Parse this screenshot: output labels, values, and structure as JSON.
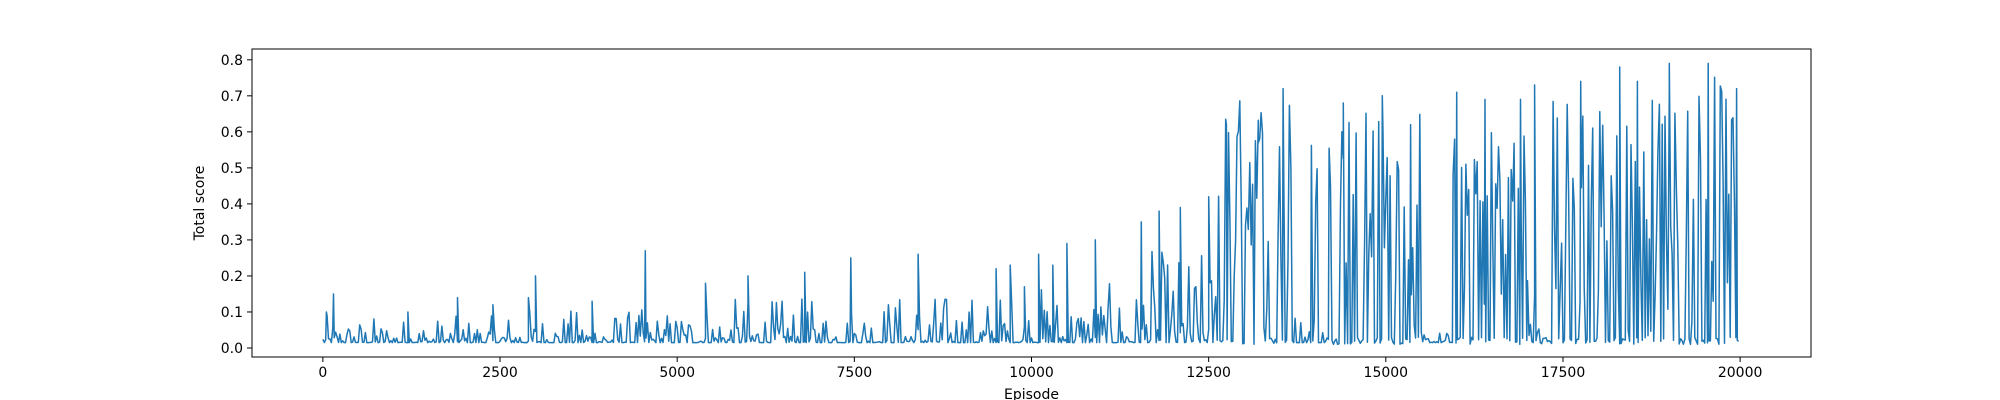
{
  "chart_data": {
    "type": "line",
    "title": "",
    "xlabel": "Episode",
    "ylabel": "Total score",
    "xlim": [
      -1000,
      21000
    ],
    "ylim": [
      -0.025,
      0.83
    ],
    "x_ticks": [
      0,
      2500,
      5000,
      7500,
      10000,
      12500,
      15000,
      17500,
      20000
    ],
    "x_tick_labels": [
      "0",
      "2500",
      "5000",
      "7500",
      "10000",
      "12500",
      "15000",
      "17500",
      "20000"
    ],
    "y_ticks": [
      0.0,
      0.1,
      0.2,
      0.3,
      0.4,
      0.5,
      0.6,
      0.7,
      0.8
    ],
    "y_tick_labels": [
      "0.0",
      "0.1",
      "0.2",
      "0.3",
      "0.4",
      "0.5",
      "0.6",
      "0.7",
      "0.8"
    ],
    "grid": false,
    "legend": "none",
    "color": "#1f77b4",
    "series": [
      {
        "episode_range": [
          0,
          20000
        ],
        "baseline_score": 0.02,
        "segments": [
          {
            "from": 0,
            "to": 2500,
            "low": 0.01,
            "high": 0.09,
            "peaks": [
              [
                50,
                0.1
              ],
              [
                150,
                0.15
              ],
              [
                1200,
                0.1
              ],
              [
                1900,
                0.14
              ],
              [
                2400,
                0.12
              ]
            ]
          },
          {
            "from": 2500,
            "to": 5000,
            "low": 0.01,
            "high": 0.11,
            "peaks": [
              [
                2900,
                0.14
              ],
              [
                3000,
                0.2
              ],
              [
                3800,
                0.13
              ],
              [
                4550,
                0.27
              ]
            ]
          },
          {
            "from": 5000,
            "to": 7500,
            "low": 0.01,
            "high": 0.14,
            "peaks": [
              [
                5400,
                0.18
              ],
              [
                6000,
                0.2
              ],
              [
                6800,
                0.21
              ],
              [
                7450,
                0.25
              ]
            ]
          },
          {
            "from": 7500,
            "to": 10000,
            "low": 0.01,
            "high": 0.16,
            "peaks": [
              [
                8400,
                0.26
              ],
              [
                9500,
                0.22
              ],
              [
                9700,
                0.23
              ],
              [
                9900,
                0.17
              ]
            ]
          },
          {
            "from": 10000,
            "to": 11500,
            "low": 0.01,
            "high": 0.18,
            "peaks": [
              [
                10100,
                0.26
              ],
              [
                10300,
                0.23
              ],
              [
                10500,
                0.29
              ],
              [
                10900,
                0.3
              ]
            ]
          },
          {
            "from": 11500,
            "to": 12600,
            "low": 0.01,
            "high": 0.28,
            "peaks": [
              [
                11550,
                0.35
              ],
              [
                11800,
                0.38
              ],
              [
                12100,
                0.39
              ],
              [
                12500,
                0.42
              ]
            ]
          },
          {
            "from": 12600,
            "to": 13700,
            "low": 0.01,
            "high": 0.7,
            "peaks": [
              [
                12750,
                0.62
              ],
              [
                13200,
                0.57
              ],
              [
                13550,
                0.72
              ]
            ]
          },
          {
            "from": 13700,
            "to": 13950,
            "low": 0.01,
            "high": 0.12,
            "peaks": []
          },
          {
            "from": 13950,
            "to": 14050,
            "low": 0.01,
            "high": 0.6,
            "peaks": []
          },
          {
            "from": 14050,
            "to": 14200,
            "low": 0.01,
            "high": 0.08,
            "peaks": []
          },
          {
            "from": 14200,
            "to": 15500,
            "low": 0.01,
            "high": 0.66,
            "peaks": [
              [
                14400,
                0.68
              ],
              [
                14950,
                0.7
              ],
              [
                15350,
                0.62
              ]
            ]
          },
          {
            "from": 15500,
            "to": 15950,
            "low": 0.01,
            "high": 0.05,
            "peaks": []
          },
          {
            "from": 15950,
            "to": 17000,
            "low": 0.01,
            "high": 0.66,
            "peaks": [
              [
                16000,
                0.71
              ],
              [
                16400,
                0.69
              ],
              [
                16900,
                0.69
              ]
            ]
          },
          {
            "from": 17000,
            "to": 17200,
            "low": 0.01,
            "high": 0.3,
            "peaks": [
              [
                17100,
                0.73
              ]
            ]
          },
          {
            "from": 17200,
            "to": 18900,
            "low": 0.01,
            "high": 0.7,
            "peaks": [
              [
                17750,
                0.74
              ],
              [
                18300,
                0.78
              ],
              [
                18550,
                0.74
              ]
            ]
          },
          {
            "from": 18900,
            "to": 20000,
            "low": 0.01,
            "high": 0.76,
            "peaks": [
              [
                19000,
                0.79
              ],
              [
                19550,
                0.79
              ],
              [
                19950,
                0.72
              ]
            ]
          }
        ]
      }
    ]
  }
}
